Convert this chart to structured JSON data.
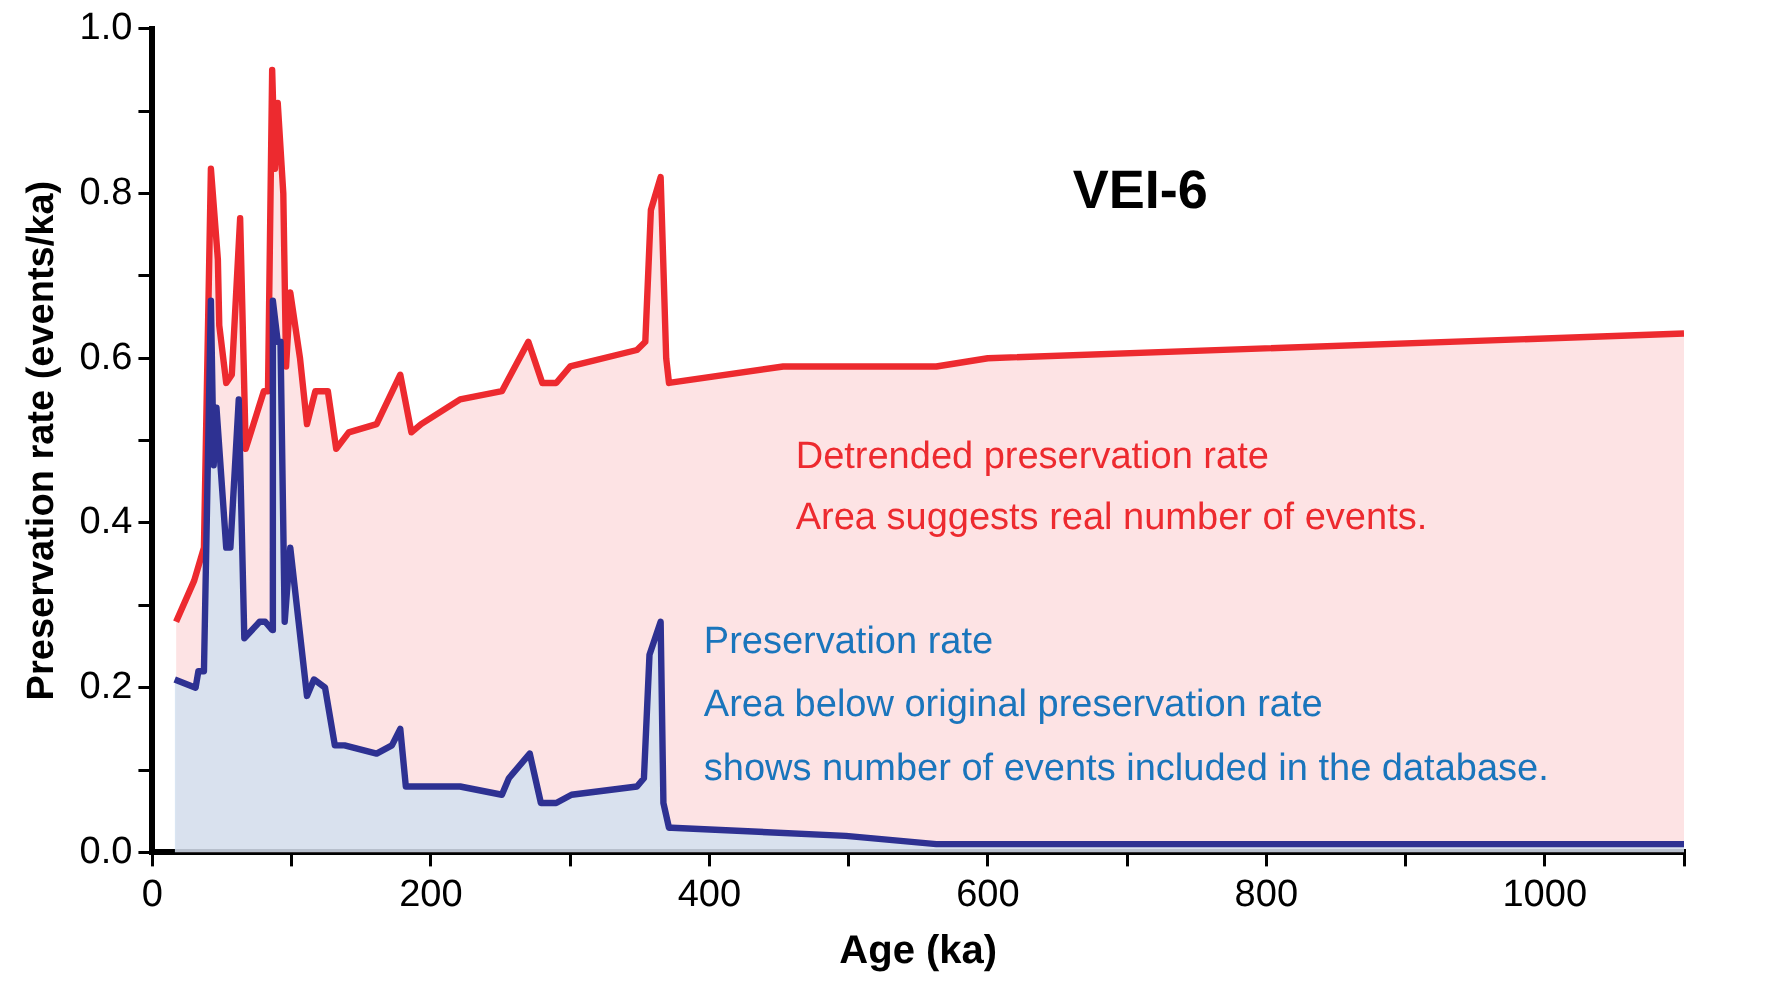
{
  "chart_data": {
    "type": "area",
    "title": "VEI-6",
    "xlabel": "Age (ka)",
    "ylabel": "Preservation rate (events/ka)",
    "annotations": [
      "Detrended preservation rate",
      "Area suggests real number of events.",
      "Preservation rate",
      "Area below original preservation rate",
      "shows number of events included in the database."
    ],
    "xlim": [
      0,
      1100
    ],
    "xticks": [
      0,
      {
        "value": 100,
        "label": null
      },
      200,
      {
        "value": 300,
        "label": null
      },
      400,
      {
        "value": 500,
        "label": null
      },
      600,
      {
        "value": 700,
        "label": null
      },
      800,
      {
        "value": 900,
        "label": null
      },
      1000,
      {
        "value": 1100,
        "label": null
      }
    ],
    "ylim": [
      0,
      1
    ],
    "yticks": [
      {
        "value": 0,
        "label": "0.0"
      },
      {
        "value": 0.1,
        "label": null
      },
      {
        "value": 0.2,
        "label": "0.2"
      },
      {
        "value": 0.3,
        "label": null
      },
      {
        "value": 0.4,
        "label": "0.4"
      },
      {
        "value": 0.5,
        "label": null
      },
      {
        "value": 0.6,
        "label": "0.6"
      },
      {
        "value": 0.7,
        "label": null
      },
      {
        "value": 0.8,
        "label": "0.8"
      },
      {
        "value": 0.9,
        "label": null
      },
      {
        "value": 1,
        "label": "1.0"
      }
    ],
    "grid": false,
    "legend": false,
    "marker": "none",
    "line_style": "solid",
    "series": [
      {
        "color": "#ed2a2f",
        "x": [
          17,
          30,
          37,
          42,
          47,
          48,
          53,
          57,
          63,
          67,
          80,
          83,
          86,
          88,
          90,
          94,
          96,
          99,
          106,
          111,
          117,
          126,
          132,
          141,
          161,
          178,
          186,
          193,
          221,
          251,
          270,
          280,
          290,
          300,
          348,
          354,
          358,
          365,
          369,
          371,
          453,
          500,
          563,
          600,
          1100
        ],
        "values": [
          0.28,
          0.33,
          0.37,
          0.83,
          0.72,
          0.64,
          0.57,
          0.58,
          0.77,
          0.49,
          0.56,
          0.56,
          0.95,
          0.83,
          0.91,
          0.8,
          0.59,
          0.68,
          0.6,
          0.52,
          0.56,
          0.56,
          0.49,
          0.51,
          0.52,
          0.58,
          0.51,
          0.52,
          0.55,
          0.56,
          0.62,
          0.57,
          0.57,
          0.59,
          0.61,
          0.62,
          0.78,
          0.82,
          0.6,
          0.57,
          0.59,
          0.59,
          0.59,
          0.6,
          0.63
        ]
      },
      {
        "color": "#2e3192",
        "x": [
          16,
          31,
          33,
          37,
          42,
          44,
          46,
          53,
          56,
          62,
          66,
          77,
          81,
          86,
          86.5,
          90,
          92,
          95,
          99,
          105,
          111,
          116,
          124,
          131,
          138,
          161,
          172,
          178,
          182,
          187,
          221,
          251,
          256,
          271,
          279,
          290,
          301,
          348,
          353,
          357,
          365,
          367,
          371,
          373,
          498,
          563,
          1100
        ],
        "values": [
          0.21,
          0.2,
          0.22,
          0.22,
          0.67,
          0.47,
          0.54,
          0.37,
          0.37,
          0.55,
          0.26,
          0.28,
          0.28,
          0.27,
          0.67,
          0.62,
          0.62,
          0.28,
          0.37,
          0.28,
          0.19,
          0.21,
          0.2,
          0.13,
          0.13,
          0.12,
          0.13,
          0.15,
          0.08,
          0.08,
          0.08,
          0.07,
          0.09,
          0.12,
          0.06,
          0.06,
          0.07,
          0.08,
          0.09,
          0.24,
          0.28,
          0.06,
          0.03,
          0.03,
          0.02,
          0.01,
          0.01
        ]
      }
    ]
  }
}
